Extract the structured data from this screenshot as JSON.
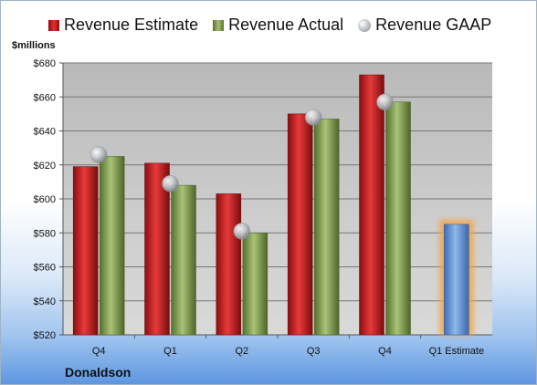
{
  "legend": {
    "estimate": "Revenue Estimate",
    "actual": "Revenue Actual",
    "gaap": "Revenue GAAP"
  },
  "unit_label": "$millions",
  "company": "Donaldson",
  "colors": {
    "estimate": "#d42a2a",
    "actual": "#8aa85a",
    "gaap": "#b8bdc2",
    "forecast": "#6f9fd8",
    "forecast_glow": "#f3a54a",
    "plot_bg": "#c8c8c8"
  },
  "chart_data": {
    "type": "bar",
    "categories": [
      "Q4",
      "Q1",
      "Q2",
      "Q3",
      "Q4",
      "Q1 Estimate"
    ],
    "ylim": [
      520,
      680
    ],
    "yticks": [
      "$520",
      "$540",
      "$560",
      "$580",
      "$600",
      "$620",
      "$640",
      "$660",
      "$680"
    ],
    "ytick_values": [
      520,
      540,
      560,
      580,
      600,
      620,
      640,
      660,
      680
    ],
    "series": [
      {
        "name": "Revenue Estimate",
        "values": [
          619,
          621,
          603,
          650,
          673,
          null
        ]
      },
      {
        "name": "Revenue Actual",
        "values": [
          625,
          608,
          580,
          647,
          657,
          null
        ]
      },
      {
        "name": "Revenue GAAP",
        "values": [
          626,
          609,
          581,
          648,
          657,
          null
        ]
      }
    ],
    "forecast": {
      "name": "Q1 Estimate",
      "value": 585
    },
    "grid": true,
    "legend_position": "top"
  }
}
